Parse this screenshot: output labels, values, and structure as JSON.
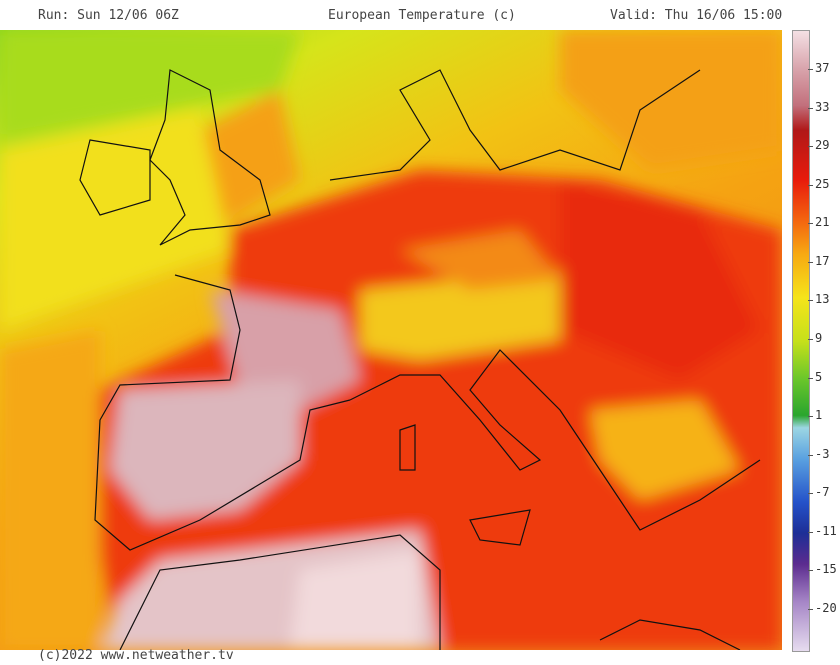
{
  "header": {
    "run": "Run: Sun 12/06 06Z",
    "title": "European Temperature (c)",
    "valid": "Valid: Thu 16/06 15:00"
  },
  "legend": {
    "labels": [
      "37",
      "33",
      "29",
      "25",
      "21",
      "17",
      "13",
      "9",
      "5",
      "1",
      "-3",
      "-7",
      "-11",
      "-15",
      "-20"
    ]
  },
  "footer": {
    "copyright": "(c)2022 www.netweather.tv"
  }
}
